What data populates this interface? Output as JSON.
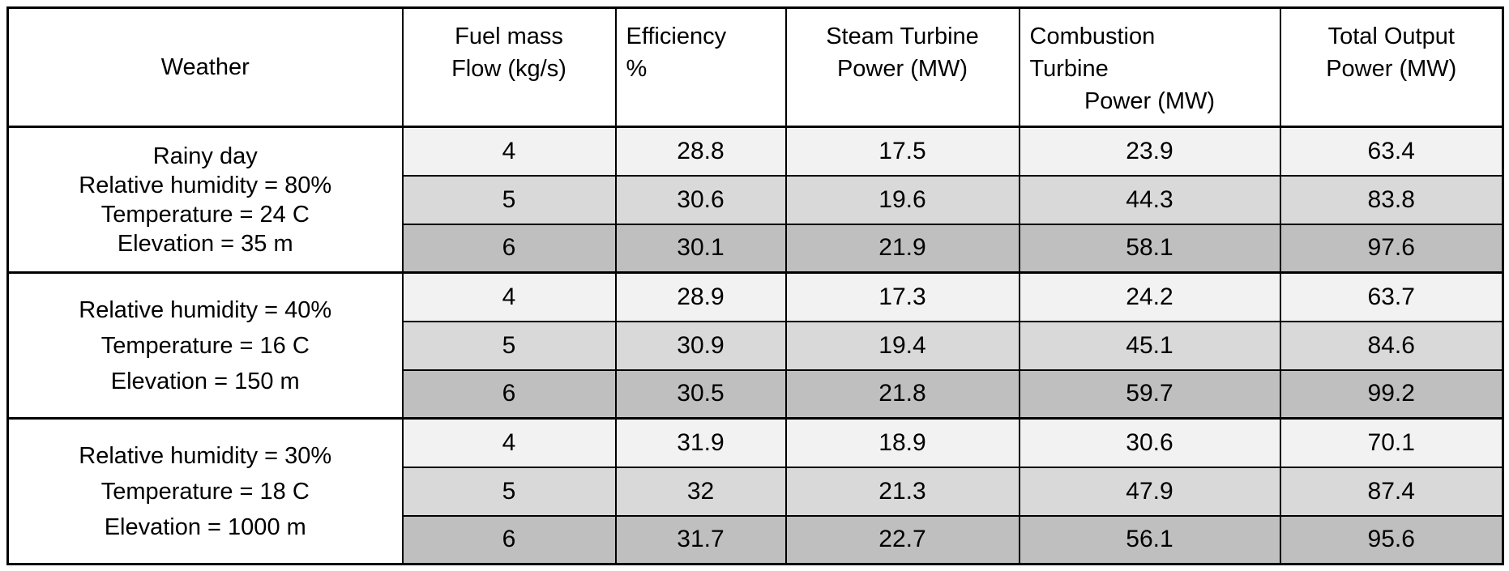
{
  "table": {
    "columns": [
      {
        "key": "weather",
        "lines": [
          "Weather"
        ]
      },
      {
        "key": "fuel_mass_flow",
        "lines": [
          "Fuel mass",
          "Flow (kg/s)"
        ]
      },
      {
        "key": "efficiency",
        "lines": [
          "Efficiency",
          "%"
        ]
      },
      {
        "key": "steam_turbine_power",
        "lines": [
          "Steam Turbine",
          "Power (MW)"
        ]
      },
      {
        "key": "combustion_turbine_power",
        "lines": [
          "Combustion",
          "Turbine",
          "Power (MW)"
        ]
      },
      {
        "key": "total_output_power",
        "lines": [
          "Total Output",
          "Power (MW)"
        ]
      }
    ],
    "groups": [
      {
        "weather_lines": [
          "Rainy day",
          "Relative humidity = 80%",
          "Temperature = 24 C",
          "Elevation = 35 m"
        ],
        "rows": [
          [
            "4",
            "28.8",
            "17.5",
            "23.9",
            "63.4"
          ],
          [
            "5",
            "30.6",
            "19.6",
            "44.3",
            "83.8"
          ],
          [
            "6",
            "30.1",
            "21.9",
            "58.1",
            "97.6"
          ]
        ]
      },
      {
        "weather_lines": [
          "Relative humidity = 40%",
          "Temperature = 16 C",
          "Elevation = 150 m"
        ],
        "rows": [
          [
            "4",
            "28.9",
            "17.3",
            "24.2",
            "63.7"
          ],
          [
            "5",
            "30.9",
            "19.4",
            "45.1",
            "84.6"
          ],
          [
            "6",
            "30.5",
            "21.8",
            "59.7",
            "99.2"
          ]
        ]
      },
      {
        "weather_lines": [
          "Relative humidity = 30%",
          "Temperature = 18 C",
          "Elevation = 1000 m"
        ],
        "rows": [
          [
            "4",
            "31.9",
            "18.9",
            "30.6",
            "70.1"
          ],
          [
            "5",
            "32",
            "21.3",
            "47.9",
            "87.4"
          ],
          [
            "6",
            "31.7",
            "22.7",
            "56.1",
            "95.6"
          ]
        ]
      }
    ],
    "row_shades": [
      "#f2f2f2",
      "#d9d9d9",
      "#bfbfbf"
    ],
    "colors": {
      "border": "#000000",
      "background": "#ffffff",
      "text": "#000000"
    }
  }
}
